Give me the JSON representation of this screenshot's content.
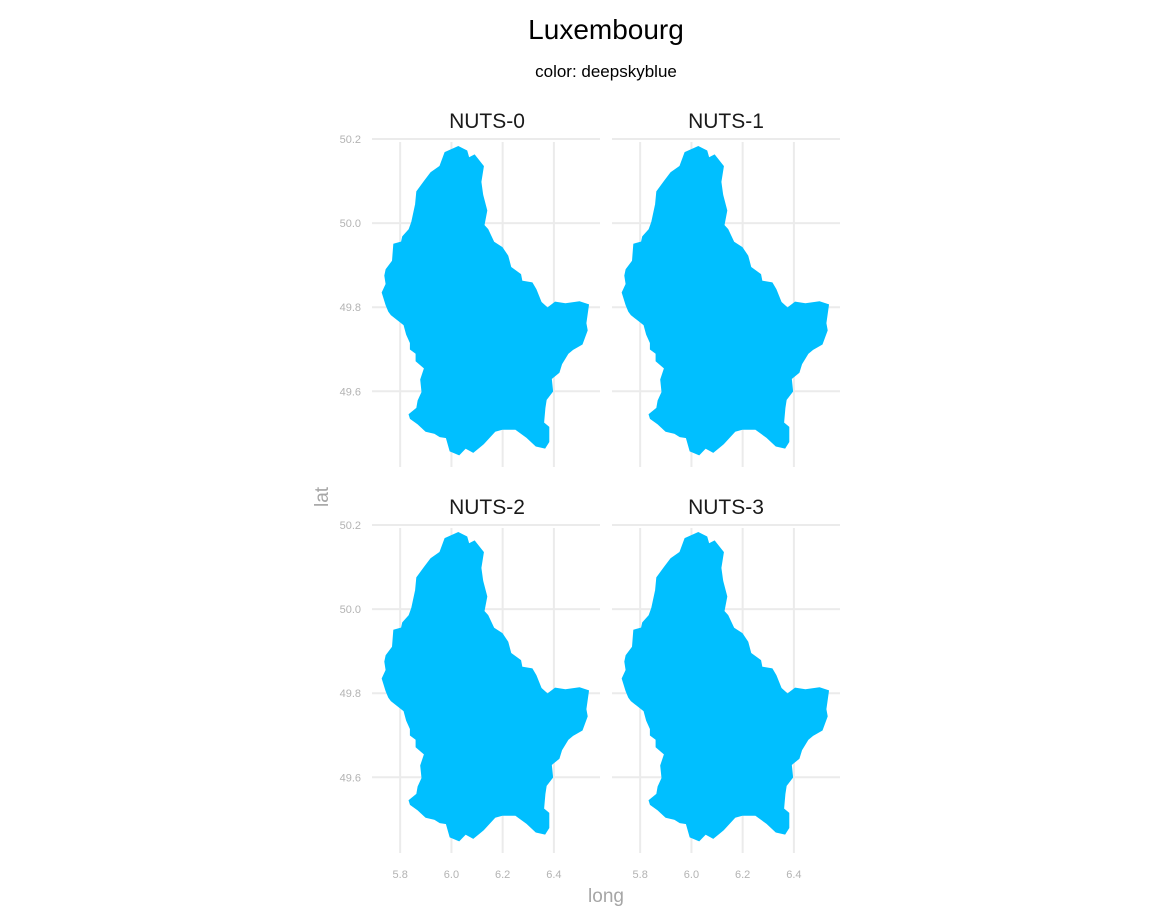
{
  "title": "Luxembourg",
  "subtitle": "color: deepskyblue",
  "fill_color": "#00BFFF",
  "grid_color": "#EBEBEB",
  "chart_data": {
    "type": "map",
    "title": "Luxembourg",
    "subtitle": "color: deepskyblue",
    "xlabel": "long",
    "ylabel": "lat",
    "facets": [
      "NUTS-0",
      "NUTS-1",
      "NUTS-2",
      "NUTS-3"
    ],
    "x_ticks": [
      5.8,
      6.0,
      6.2,
      6.4
    ],
    "x_tick_labels": [
      "5.8",
      "6.0",
      "6.2",
      "6.4"
    ],
    "y_ticks": [
      49.6,
      49.8,
      50.0,
      50.2
    ],
    "y_tick_labels": [
      "49.6",
      "49.8",
      "50.0",
      "50.2"
    ],
    "xlim": [
      5.69,
      6.58
    ],
    "ylim": [
      49.42,
      50.2
    ],
    "grid": true,
    "fill": "deepskyblue",
    "outline_lonlat": [
      [
        6.027,
        50.182
      ],
      [
        6.06,
        50.172
      ],
      [
        6.068,
        50.155
      ],
      [
        6.09,
        50.162
      ],
      [
        6.125,
        50.135
      ],
      [
        6.115,
        50.098
      ],
      [
        6.122,
        50.067
      ],
      [
        6.138,
        50.03
      ],
      [
        6.127,
        49.995
      ],
      [
        6.142,
        49.985
      ],
      [
        6.165,
        49.955
      ],
      [
        6.198,
        49.942
      ],
      [
        6.22,
        49.922
      ],
      [
        6.232,
        49.895
      ],
      [
        6.27,
        49.878
      ],
      [
        6.275,
        49.862
      ],
      [
        6.315,
        49.858
      ],
      [
        6.33,
        49.842
      ],
      [
        6.35,
        49.812
      ],
      [
        6.375,
        49.798
      ],
      [
        6.405,
        49.812
      ],
      [
        6.445,
        49.808
      ],
      [
        6.5,
        49.813
      ],
      [
        6.535,
        49.806
      ],
      [
        6.525,
        49.762
      ],
      [
        6.53,
        49.745
      ],
      [
        6.51,
        49.712
      ],
      [
        6.475,
        49.7
      ],
      [
        6.455,
        49.69
      ],
      [
        6.43,
        49.665
      ],
      [
        6.42,
        49.645
      ],
      [
        6.39,
        49.63
      ],
      [
        6.395,
        49.6
      ],
      [
        6.37,
        49.58
      ],
      [
        6.365,
        49.56
      ],
      [
        6.36,
        49.525
      ],
      [
        6.38,
        49.515
      ],
      [
        6.38,
        49.48
      ],
      [
        6.365,
        49.465
      ],
      [
        6.33,
        49.47
      ],
      [
        6.295,
        49.49
      ],
      [
        6.25,
        49.51
      ],
      [
        6.2,
        49.51
      ],
      [
        6.17,
        49.505
      ],
      [
        6.125,
        49.475
      ],
      [
        6.105,
        49.465
      ],
      [
        6.085,
        49.455
      ],
      [
        6.055,
        49.465
      ],
      [
        6.03,
        49.449
      ],
      [
        5.995,
        49.458
      ],
      [
        5.98,
        49.49
      ],
      [
        5.955,
        49.492
      ],
      [
        5.935,
        49.5
      ],
      [
        5.9,
        49.505
      ],
      [
        5.87,
        49.522
      ],
      [
        5.84,
        49.535
      ],
      [
        5.835,
        49.545
      ],
      [
        5.865,
        49.56
      ],
      [
        5.87,
        49.578
      ],
      [
        5.885,
        49.598
      ],
      [
        5.88,
        49.628
      ],
      [
        5.895,
        49.655
      ],
      [
        5.862,
        49.672
      ],
      [
        5.862,
        49.69
      ],
      [
        5.84,
        49.7
      ],
      [
        5.84,
        49.715
      ],
      [
        5.825,
        49.735
      ],
      [
        5.815,
        49.758
      ],
      [
        5.765,
        49.782
      ],
      [
        5.755,
        49.79
      ],
      [
        5.745,
        49.805
      ],
      [
        5.73,
        49.835
      ],
      [
        5.745,
        49.855
      ],
      [
        5.74,
        49.875
      ],
      [
        5.745,
        49.89
      ],
      [
        5.77,
        49.91
      ],
      [
        5.775,
        49.95
      ],
      [
        5.805,
        49.955
      ],
      [
        5.81,
        49.968
      ],
      [
        5.835,
        49.985
      ],
      [
        5.845,
        50.002
      ],
      [
        5.86,
        50.045
      ],
      [
        5.865,
        50.075
      ],
      [
        5.895,
        50.1
      ],
      [
        5.92,
        50.12
      ],
      [
        5.955,
        50.135
      ],
      [
        5.975,
        50.168
      ],
      [
        6.027,
        50.182
      ]
    ]
  }
}
